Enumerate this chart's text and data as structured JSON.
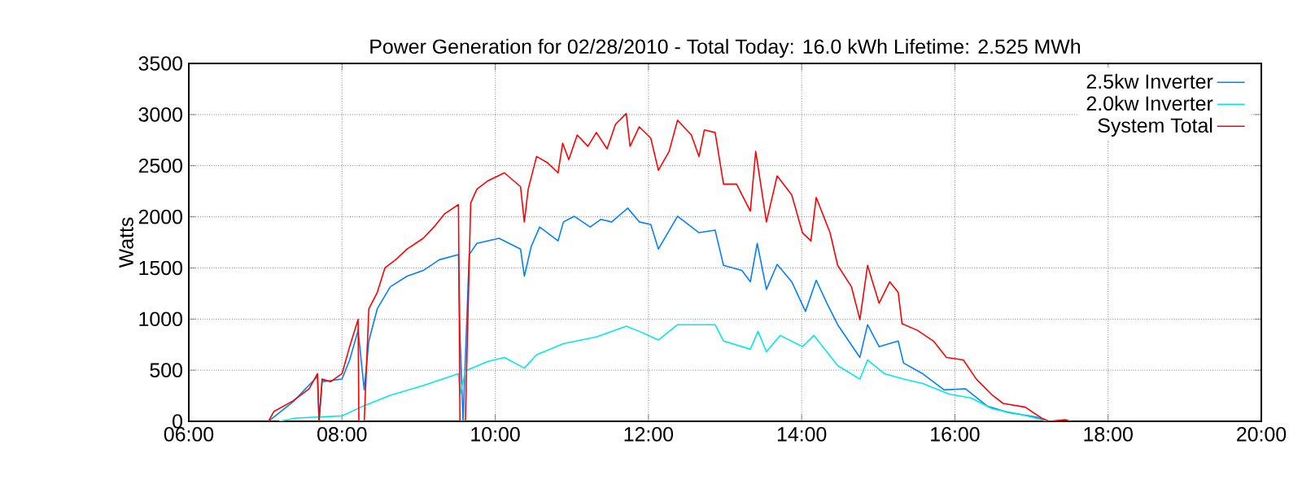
{
  "chart_data": {
    "type": "line",
    "title": "Power Generation for 02/28/2010 - Total Today: 16.0 kWh   Lifetime: 2.525 MWh",
    "ylabel": "Watts",
    "xlim": [
      6,
      20
    ],
    "ylim": [
      0,
      3500
    ],
    "xticks": [
      {
        "value": 6,
        "label": "06:00"
      },
      {
        "value": 8,
        "label": "08:00"
      },
      {
        "value": 10,
        "label": "10:00"
      },
      {
        "value": 12,
        "label": "12:00"
      },
      {
        "value": 14,
        "label": "14:00"
      },
      {
        "value": 16,
        "label": "16:00"
      },
      {
        "value": 18,
        "label": "18:00"
      },
      {
        "value": 20,
        "label": "20:00"
      }
    ],
    "yticks": [
      0,
      500,
      1000,
      1500,
      2000,
      2500,
      3000,
      3500
    ],
    "grid": true,
    "legend": "top right",
    "series": [
      {
        "name": "2.5kw Inverter",
        "color": "#0080ff",
        "x": [
          7.04,
          7.36,
          7.68,
          7.7,
          7.74,
          8.0,
          8.1,
          8.21,
          8.29,
          8.35,
          8.46,
          8.63,
          8.85,
          9.06,
          9.27,
          9.52,
          9.54,
          9.58,
          9.66,
          9.76,
          10.05,
          10.33,
          10.38,
          10.47,
          10.58,
          10.82,
          10.89,
          11.03,
          11.24,
          11.38,
          11.52,
          11.73,
          11.88,
          12.03,
          12.13,
          12.38,
          12.66,
          12.87,
          12.98,
          13.22,
          13.33,
          13.42,
          13.54,
          13.68,
          13.87,
          14.05,
          14.19,
          14.33,
          14.47,
          14.76,
          14.86,
          15.01,
          15.26,
          15.33,
          15.58,
          15.86,
          16.14,
          16.42,
          16.7,
          17.06,
          17.2
        ],
        "values": [
          0,
          190,
          440,
          0,
          387,
          413,
          600,
          890,
          307,
          785,
          1100,
          1315,
          1420,
          1475,
          1580,
          1630,
          840,
          0,
          1630,
          1740,
          1790,
          1685,
          1420,
          1710,
          1900,
          1765,
          1950,
          2005,
          1900,
          1975,
          1950,
          2085,
          1950,
          1925,
          1685,
          2005,
          1845,
          1870,
          1525,
          1475,
          1365,
          1740,
          1290,
          1535,
          1365,
          1075,
          1380,
          1155,
          945,
          625,
          945,
          730,
          785,
          570,
          465,
          307,
          318,
          150,
          85,
          42,
          0
        ]
      },
      {
        "name": "2.0kw Inverter",
        "color": "#00e8e8",
        "x": [
          7.18,
          7.4,
          8.0,
          8.28,
          8.63,
          9.06,
          9.52,
          9.54,
          9.61,
          9.9,
          10.12,
          10.38,
          10.54,
          10.89,
          11.32,
          11.71,
          11.88,
          12.13,
          12.38,
          12.87,
          12.98,
          13.33,
          13.43,
          13.54,
          13.72,
          14.01,
          14.16,
          14.47,
          14.76,
          14.86,
          15.08,
          15.33,
          15.58,
          15.93,
          16.21,
          16.49,
          16.85,
          17.13,
          17.2
        ],
        "values": [
          0,
          32,
          53,
          150,
          255,
          350,
          466,
          255,
          493,
          585,
          625,
          520,
          650,
          760,
          825,
          930,
          880,
          795,
          945,
          945,
          785,
          705,
          880,
          680,
          840,
          730,
          840,
          545,
          413,
          600,
          466,
          413,
          370,
          265,
          228,
          122,
          69,
          16,
          0
        ]
      },
      {
        "name": "System Total",
        "color": "#ff0000",
        "x": [
          7.04,
          7.11,
          7.36,
          7.57,
          7.68,
          7.7,
          7.74,
          7.85,
          8.0,
          8.1,
          8.21,
          8.22,
          8.29,
          8.35,
          8.46,
          8.56,
          8.7,
          8.85,
          9.06,
          9.2,
          9.34,
          9.52,
          9.54,
          9.61,
          9.68,
          9.76,
          9.9,
          10.12,
          10.33,
          10.38,
          10.43,
          10.54,
          10.68,
          10.82,
          10.88,
          10.96,
          11.07,
          11.21,
          11.32,
          11.46,
          11.57,
          11.71,
          11.76,
          11.88,
          12.03,
          12.13,
          12.27,
          12.38,
          12.56,
          12.66,
          12.73,
          12.87,
          12.98,
          13.15,
          13.33,
          13.4,
          13.54,
          13.68,
          13.87,
          14.01,
          14.12,
          14.19,
          14.37,
          14.47,
          14.65,
          14.76,
          14.86,
          15.01,
          15.15,
          15.26,
          15.31,
          15.51,
          15.72,
          15.89,
          16.11,
          16.28,
          16.49,
          16.63,
          16.92,
          17.13,
          17.23,
          17.44,
          17.51
        ],
        "values": [
          0,
          95,
          200,
          318,
          466,
          0,
          413,
          387,
          466,
          731,
          996,
          0,
          0,
          1100,
          1260,
          1500,
          1580,
          1685,
          1790,
          1900,
          2030,
          2120,
          0,
          0,
          2135,
          2270,
          2350,
          2430,
          2295,
          1950,
          2270,
          2590,
          2530,
          2430,
          2720,
          2560,
          2800,
          2690,
          2825,
          2665,
          2905,
          3010,
          2690,
          2880,
          2770,
          2455,
          2640,
          2945,
          2800,
          2590,
          2850,
          2825,
          2320,
          2320,
          2055,
          2640,
          1950,
          2400,
          2215,
          1845,
          1765,
          2190,
          1845,
          1525,
          1315,
          995,
          1525,
          1155,
          1365,
          1260,
          955,
          890,
          785,
          625,
          600,
          413,
          255,
          175,
          138,
          32,
          0,
          16,
          0
        ]
      }
    ]
  }
}
